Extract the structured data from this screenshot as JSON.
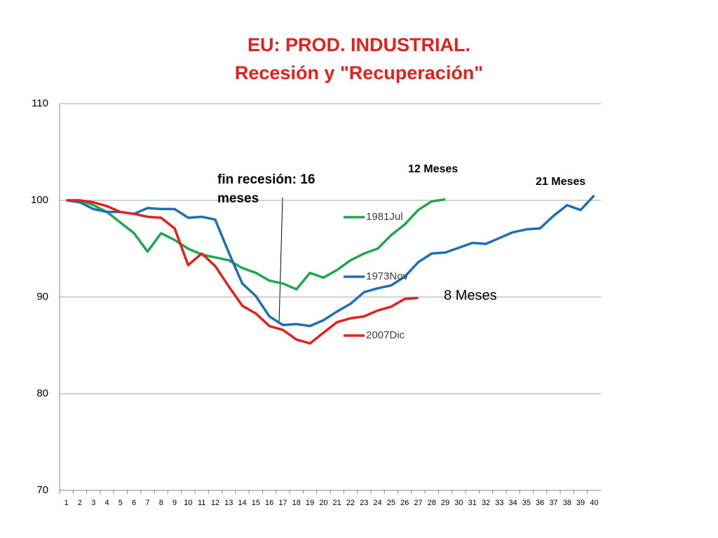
{
  "chart_data": {
    "type": "line",
    "title": [
      "EU: PROD. INDUSTRIAL.",
      "Recesión y \"Recuperación\""
    ],
    "categories": [
      1,
      2,
      3,
      4,
      5,
      6,
      7,
      8,
      9,
      10,
      11,
      12,
      13,
      14,
      15,
      16,
      17,
      18,
      19,
      20,
      21,
      22,
      23,
      24,
      25,
      26,
      27,
      28,
      29,
      30,
      31,
      32,
      33,
      34,
      35,
      36,
      37,
      38,
      39,
      40
    ],
    "series": [
      {
        "name": "1981Jul",
        "color": "#1fa84a",
        "values": [
          100,
          100,
          99.5,
          98.8,
          97.7,
          96.6,
          94.7,
          96.6,
          95.9,
          95.0,
          94.4,
          94.1,
          93.8,
          93.0,
          92.5,
          91.7,
          91.4,
          90.8,
          92.5,
          92.0,
          92.8,
          93.8,
          94.5,
          95.0,
          96.4,
          97.5,
          99.0,
          99.9,
          100.1,
          null,
          null,
          null,
          null,
          null,
          null,
          null,
          null,
          null,
          null,
          null
        ]
      },
      {
        "name": "1973Nov",
        "color": "#1f6fb8",
        "values": [
          100,
          99.8,
          99.1,
          98.8,
          98.8,
          98.6,
          99.2,
          99.1,
          99.1,
          98.2,
          98.3,
          98.0,
          94.6,
          91.4,
          90.1,
          88.0,
          87.1,
          87.2,
          87.0,
          87.6,
          88.5,
          89.3,
          90.5,
          90.9,
          91.2,
          92.1,
          93.6,
          94.5,
          94.6,
          95.1,
          95.6,
          95.5,
          96.1,
          96.7,
          97.0,
          97.1,
          98.4,
          99.5,
          99.0,
          100.5
        ]
      },
      {
        "name": "2007Dic",
        "color": "#e3211c",
        "values": [
          100,
          100,
          99.8,
          99.4,
          98.8,
          98.6,
          98.3,
          98.2,
          97.1,
          93.3,
          94.5,
          93.2,
          91.1,
          89.1,
          88.3,
          87.0,
          86.6,
          85.6,
          85.2,
          86.3,
          87.4,
          87.8,
          88.0,
          88.6,
          89.0,
          89.8,
          89.9,
          null,
          null,
          null,
          null,
          null,
          null,
          null,
          null,
          null,
          null,
          null,
          null,
          null
        ]
      }
    ],
    "ylim": [
      70,
      110
    ],
    "yticks": [
      70,
      80,
      90,
      100,
      110
    ],
    "grid": true,
    "legend": "right",
    "annotations": [
      "fin recesión: 16 meses",
      "12 Meses",
      "21 Meses",
      "8 Meses"
    ]
  }
}
